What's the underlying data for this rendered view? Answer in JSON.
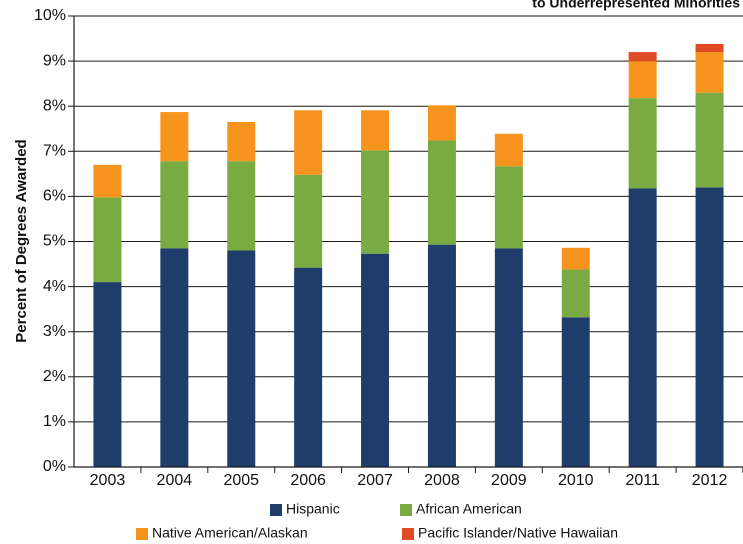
{
  "chart_data": {
    "type": "bar",
    "stacked": true,
    "title": "to Underrepresented Minorities",
    "ylabel": "Percent of Degrees Awarded",
    "xlabel": "",
    "ylim": [
      0,
      10
    ],
    "y_tick_labels": [
      "0%",
      "1%",
      "2%",
      "3%",
      "4%",
      "5%",
      "6%",
      "7%",
      "8%",
      "9%",
      "10%"
    ],
    "grid": true,
    "legend_position": "bottom",
    "categories": [
      "2003",
      "2004",
      "2005",
      "2006",
      "2007",
      "2008",
      "2009",
      "2010",
      "2011",
      "2012"
    ],
    "series": [
      {
        "name": "Hispanic",
        "color": "#1f3d6b",
        "values": [
          4.1,
          4.85,
          4.8,
          4.42,
          4.73,
          4.93,
          4.85,
          3.32,
          6.18,
          6.2
        ]
      },
      {
        "name": "African American",
        "color": "#7aab43",
        "values": [
          1.88,
          1.93,
          1.98,
          2.06,
          2.29,
          2.31,
          1.82,
          1.06,
          2.0,
          2.1
        ]
      },
      {
        "name": "Native American/Alaskan",
        "color": "#f7941d",
        "values": [
          0.72,
          1.09,
          0.87,
          1.43,
          0.89,
          0.78,
          0.72,
          0.48,
          0.82,
          0.9
        ]
      },
      {
        "name": "Pacific Islander/Native Hawaiian",
        "color": "#e04b26",
        "values": [
          0,
          0,
          0,
          0,
          0,
          0,
          0,
          0,
          0.2,
          0.18
        ]
      }
    ]
  }
}
